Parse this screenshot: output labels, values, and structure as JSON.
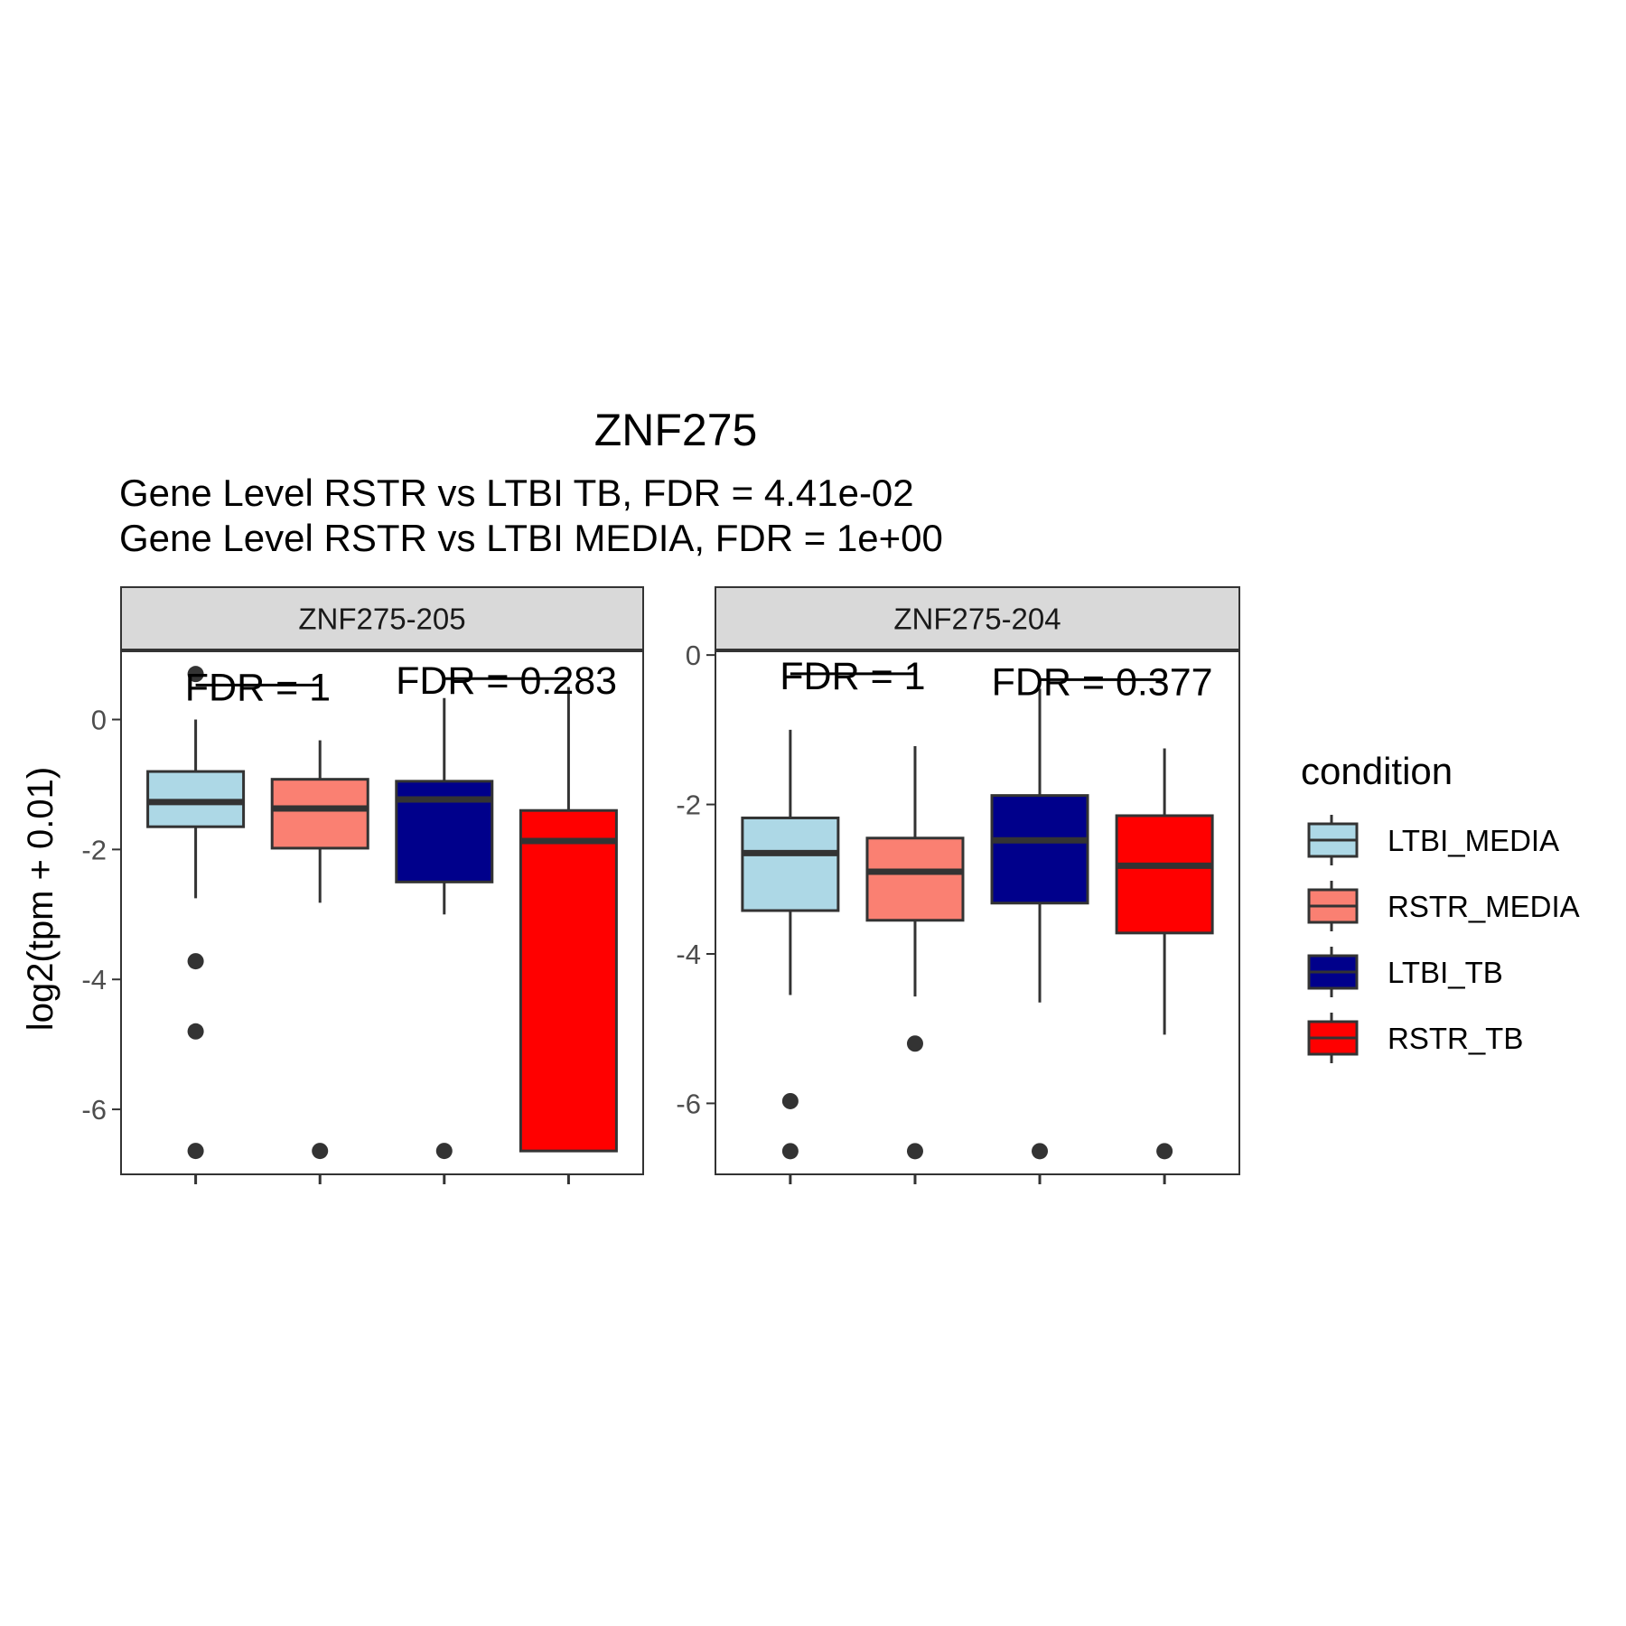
{
  "chart_data": {
    "type": "box",
    "title": "ZNF275",
    "subtitle_lines": [
      "Gene Level RSTR vs LTBI TB, FDR =  4.41e-02",
      "Gene Level RSTR vs LTBI MEDIA, FDR =  1e+00"
    ],
    "ylabel": "log2(tpm + 0.01)",
    "xlabel": "",
    "legend": {
      "title": "condition",
      "position": "right",
      "entries": [
        {
          "name": "LTBI_MEDIA",
          "color": "#ADD8E6"
        },
        {
          "name": "RSTR_MEDIA",
          "color": "#FA8072"
        },
        {
          "name": "LTBI_TB",
          "color": "#00008B"
        },
        {
          "name": "RSTR_TB",
          "color": "#FF0000"
        }
      ]
    },
    "categories": [
      "LTBI_MEDIA",
      "RSTR_MEDIA",
      "LTBI_TB",
      "RSTR_TB"
    ],
    "grid": false,
    "panels": [
      {
        "strip": "ZNF275-205",
        "ylim": [
          -7,
          1.05
        ],
        "yticks": [
          0,
          -2,
          -4,
          -6
        ],
        "ytick_labels": [
          "0",
          "-2",
          "-4",
          "-6"
        ],
        "boxes": [
          {
            "condition": "LTBI_MEDIA",
            "lower_whisker": -2.75,
            "q1": -1.65,
            "median": -1.27,
            "q3": -0.8,
            "upper_whisker": 0.0,
            "outliers": [
              0.7,
              -3.72,
              -4.8,
              -6.64
            ]
          },
          {
            "condition": "RSTR_MEDIA",
            "lower_whisker": -2.82,
            "q1": -1.98,
            "median": -1.37,
            "q3": -0.92,
            "upper_whisker": -0.32,
            "outliers": [
              -6.64
            ]
          },
          {
            "condition": "LTBI_TB",
            "lower_whisker": -3.0,
            "q1": -2.5,
            "median": -1.23,
            "q3": -0.95,
            "upper_whisker": 0.33,
            "outliers": [
              -6.64
            ]
          },
          {
            "condition": "RSTR_TB",
            "lower_whisker": -6.64,
            "q1": -6.64,
            "median": -1.87,
            "q3": -1.4,
            "upper_whisker": 0.5,
            "outliers": []
          }
        ],
        "fdr_annotations": [
          {
            "text": "FDR =  1",
            "x_from": 0,
            "x_to": 1,
            "y": 0.53
          },
          {
            "text": "FDR =  0.283",
            "x_from": 2,
            "x_to": 3,
            "y": 0.63
          }
        ]
      },
      {
        "strip": "ZNF275-204",
        "ylim": [
          -6.95,
          0.05
        ],
        "yticks": [
          0,
          -2,
          -4,
          -6
        ],
        "ytick_labels": [
          "0",
          "-2",
          "-4",
          "-6"
        ],
        "boxes": [
          {
            "condition": "LTBI_MEDIA",
            "lower_whisker": -4.55,
            "q1": -3.42,
            "median": -2.65,
            "q3": -2.18,
            "upper_whisker": -1.0,
            "outliers": [
              -5.97,
              -6.64
            ]
          },
          {
            "condition": "RSTR_MEDIA",
            "lower_whisker": -4.57,
            "q1": -3.55,
            "median": -2.9,
            "q3": -2.45,
            "upper_whisker": -1.22,
            "outliers": [
              -5.2,
              -6.64
            ]
          },
          {
            "condition": "LTBI_TB",
            "lower_whisker": -4.65,
            "q1": -3.32,
            "median": -2.48,
            "q3": -1.88,
            "upper_whisker": -0.45,
            "outliers": [
              -6.64
            ]
          },
          {
            "condition": "RSTR_TB",
            "lower_whisker": -5.08,
            "q1": -3.72,
            "median": -2.82,
            "q3": -2.15,
            "upper_whisker": -1.25,
            "outliers": [
              -6.64
            ]
          }
        ],
        "fdr_annotations": [
          {
            "text": "FDR =  1",
            "x_from": 0,
            "x_to": 1,
            "y": -0.25
          },
          {
            "text": "FDR =  0.377",
            "x_from": 2,
            "x_to": 3,
            "y": -0.33
          }
        ]
      }
    ]
  }
}
